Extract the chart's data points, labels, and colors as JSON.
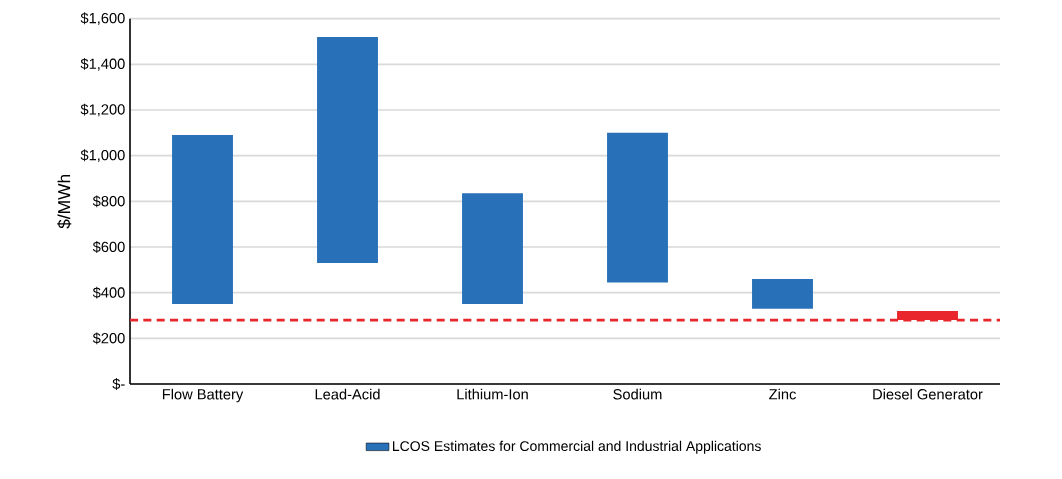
{
  "chart_data": {
    "type": "bar",
    "ylabel": "$/MWh",
    "categories": [
      "Flow Battery",
      "Lead-Acid",
      "Lithium-Ion",
      "Sodium",
      "Zinc",
      "Diesel Generator"
    ],
    "series": [
      {
        "name": "LCOS Estimates for Commercial and Industrial Applications",
        "base": [
          350,
          530,
          350,
          445,
          330,
          280
        ],
        "values": [
          740,
          990,
          485,
          655,
          130,
          40
        ],
        "colors": [
          "#2870b8",
          "#2870b8",
          "#2870b8",
          "#2870b8",
          "#2870b8",
          "#e8262b"
        ]
      }
    ],
    "ylim": [
      0,
      1600
    ],
    "yticks": [
      {
        "value": 0,
        "label": "$-"
      },
      {
        "value": 200,
        "label": "$200"
      },
      {
        "value": 400,
        "label": "$400"
      },
      {
        "value": 600,
        "label": "$600"
      },
      {
        "value": 800,
        "label": "$800"
      },
      {
        "value": 1000,
        "label": "$1,000"
      },
      {
        "value": 1200,
        "label": "$1,200"
      },
      {
        "value": 1400,
        "label": "$1,400"
      },
      {
        "value": 1600,
        "label": "$1,600"
      }
    ],
    "ref_lines": [
      {
        "axis": "y",
        "value": 280,
        "color": "#e8262b",
        "line_style": "dashed"
      }
    ],
    "grid": "y",
    "legend": "bottom"
  }
}
